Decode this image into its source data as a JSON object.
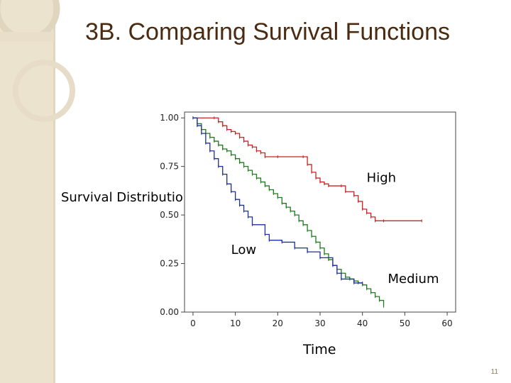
{
  "slide": {
    "title": "3B. Comparing Survival Functions",
    "page_number": "11"
  },
  "colors": {
    "sidebar": "#ece3cf",
    "title": "#4a2b10"
  },
  "chart_data": {
    "type": "line",
    "step": true,
    "title": "",
    "xlabel": "Time",
    "ylabel": "Survival Distribution Function",
    "xlim": [
      -2,
      62
    ],
    "ylim": [
      0,
      1.03
    ],
    "x_ticks": [
      0,
      10,
      20,
      30,
      40,
      50,
      60
    ],
    "y_ticks": [
      0.0,
      0.25,
      0.5,
      0.75,
      1.0
    ],
    "y_tick_labels": [
      "0.00",
      "0.25",
      "0.50",
      "0.75",
      "1.00"
    ],
    "grid": false,
    "series": [
      {
        "name": "High",
        "color": "#cc2222",
        "label": {
          "text": "High",
          "x": 41,
          "y": 0.67
        },
        "points": [
          [
            0,
            1.0
          ],
          [
            5,
            1.0
          ],
          [
            6,
            0.98
          ],
          [
            7,
            0.96
          ],
          [
            8,
            0.94
          ],
          [
            9,
            0.93
          ],
          [
            10,
            0.92
          ],
          [
            11,
            0.9
          ],
          [
            12,
            0.88
          ],
          [
            13,
            0.86
          ],
          [
            14,
            0.85
          ],
          [
            15,
            0.83
          ],
          [
            16,
            0.82
          ],
          [
            17,
            0.8
          ],
          [
            20,
            0.8
          ],
          [
            26,
            0.8
          ],
          [
            27,
            0.76
          ],
          [
            28,
            0.72
          ],
          [
            29,
            0.69
          ],
          [
            30,
            0.67
          ],
          [
            31,
            0.66
          ],
          [
            32,
            0.65
          ],
          [
            35,
            0.65
          ],
          [
            36,
            0.62
          ],
          [
            38,
            0.6
          ],
          [
            39,
            0.57
          ],
          [
            40,
            0.53
          ],
          [
            41,
            0.51
          ],
          [
            42,
            0.49
          ],
          [
            43,
            0.47
          ],
          [
            45,
            0.47
          ],
          [
            54,
            0.47
          ]
        ]
      },
      {
        "name": "Medium",
        "color": "#1f7a1f",
        "label": {
          "text": "Medium",
          "x": 46,
          "y": 0.15
        },
        "points": [
          [
            0,
            1.0
          ],
          [
            1,
            0.97
          ],
          [
            2,
            0.94
          ],
          [
            3,
            0.92
          ],
          [
            4,
            0.9
          ],
          [
            5,
            0.88
          ],
          [
            6,
            0.86
          ],
          [
            7,
            0.84
          ],
          [
            8,
            0.83
          ],
          [
            9,
            0.81
          ],
          [
            10,
            0.79
          ],
          [
            11,
            0.77
          ],
          [
            12,
            0.75
          ],
          [
            13,
            0.73
          ],
          [
            14,
            0.71
          ],
          [
            15,
            0.69
          ],
          [
            16,
            0.67
          ],
          [
            17,
            0.65
          ],
          [
            18,
            0.63
          ],
          [
            19,
            0.61
          ],
          [
            20,
            0.59
          ],
          [
            21,
            0.56
          ],
          [
            22,
            0.54
          ],
          [
            23,
            0.52
          ],
          [
            24,
            0.5
          ],
          [
            25,
            0.47
          ],
          [
            26,
            0.45
          ],
          [
            27,
            0.42
          ],
          [
            28,
            0.39
          ],
          [
            29,
            0.36
          ],
          [
            30,
            0.33
          ],
          [
            31,
            0.3
          ],
          [
            32,
            0.27
          ],
          [
            33,
            0.24
          ],
          [
            34,
            0.22
          ],
          [
            35,
            0.2
          ],
          [
            36,
            0.18
          ],
          [
            37,
            0.17
          ],
          [
            38,
            0.16
          ],
          [
            39,
            0.15
          ],
          [
            40,
            0.14
          ],
          [
            41,
            0.12
          ],
          [
            42,
            0.1
          ],
          [
            43,
            0.08
          ],
          [
            44,
            0.06
          ],
          [
            45,
            0.03
          ]
        ]
      },
      {
        "name": "Low",
        "color": "#1f2fa0",
        "label": {
          "text": "Low",
          "x": 9,
          "y": 0.3
        },
        "points": [
          [
            0,
            1.0
          ],
          [
            1,
            0.96
          ],
          [
            2,
            0.92
          ],
          [
            3,
            0.87
          ],
          [
            4,
            0.83
          ],
          [
            5,
            0.79
          ],
          [
            6,
            0.75
          ],
          [
            7,
            0.71
          ],
          [
            8,
            0.66
          ],
          [
            9,
            0.62
          ],
          [
            10,
            0.58
          ],
          [
            11,
            0.55
          ],
          [
            12,
            0.52
          ],
          [
            13,
            0.49
          ],
          [
            14,
            0.45
          ],
          [
            17,
            0.4
          ],
          [
            18,
            0.37
          ],
          [
            21,
            0.36
          ],
          [
            24,
            0.33
          ],
          [
            27,
            0.31
          ],
          [
            30,
            0.28
          ],
          [
            33,
            0.24
          ],
          [
            34,
            0.2
          ],
          [
            35,
            0.17
          ],
          [
            38,
            0.15
          ],
          [
            40,
            0.15
          ]
        ]
      }
    ]
  }
}
